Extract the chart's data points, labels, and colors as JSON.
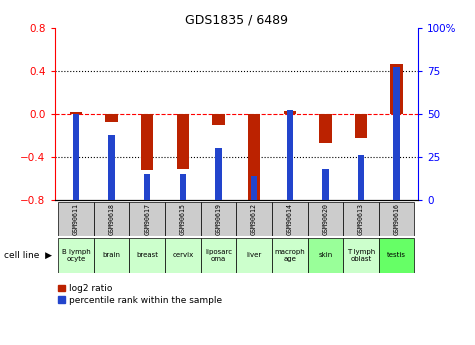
{
  "title": "GDS1835 / 6489",
  "samples": [
    "GSM90611",
    "GSM90618",
    "GSM90617",
    "GSM90615",
    "GSM90619",
    "GSM90612",
    "GSM90614",
    "GSM90620",
    "GSM90613",
    "GSM90616"
  ],
  "cell_lines": [
    "B lymph\nocyte",
    "brain",
    "breast",
    "cervix",
    "liposarc\noma",
    "liver",
    "macroph\nage",
    "skin",
    "T lymph\noblast",
    "testis"
  ],
  "cell_line_colors": [
    "#ccffcc",
    "#ccffcc",
    "#ccffcc",
    "#ccffcc",
    "#ccffcc",
    "#ccffcc",
    "#ccffcc",
    "#99ff99",
    "#ccffcc",
    "#66ff66"
  ],
  "log2_ratio": [
    0.02,
    -0.08,
    -0.52,
    -0.51,
    -0.1,
    -0.83,
    0.03,
    -0.27,
    -0.22,
    0.46
  ],
  "pct_rank": [
    50,
    38,
    15,
    15,
    30,
    14,
    52,
    18,
    26,
    77
  ],
  "ylim_left": [
    -0.8,
    0.8
  ],
  "ylim_right": [
    0,
    100
  ],
  "bar_color_red": "#bb2200",
  "bar_color_blue": "#2244cc",
  "sample_bg_color": "#cccccc",
  "yticks_left": [
    -0.8,
    -0.4,
    0,
    0.4,
    0.8
  ],
  "yticks_right": [
    0,
    25,
    50,
    75,
    100
  ],
  "hlines_dotted": [
    -0.4,
    0.4
  ],
  "hline_dashed": 0.0,
  "figsize": [
    4.75,
    3.45
  ],
  "dpi": 100
}
